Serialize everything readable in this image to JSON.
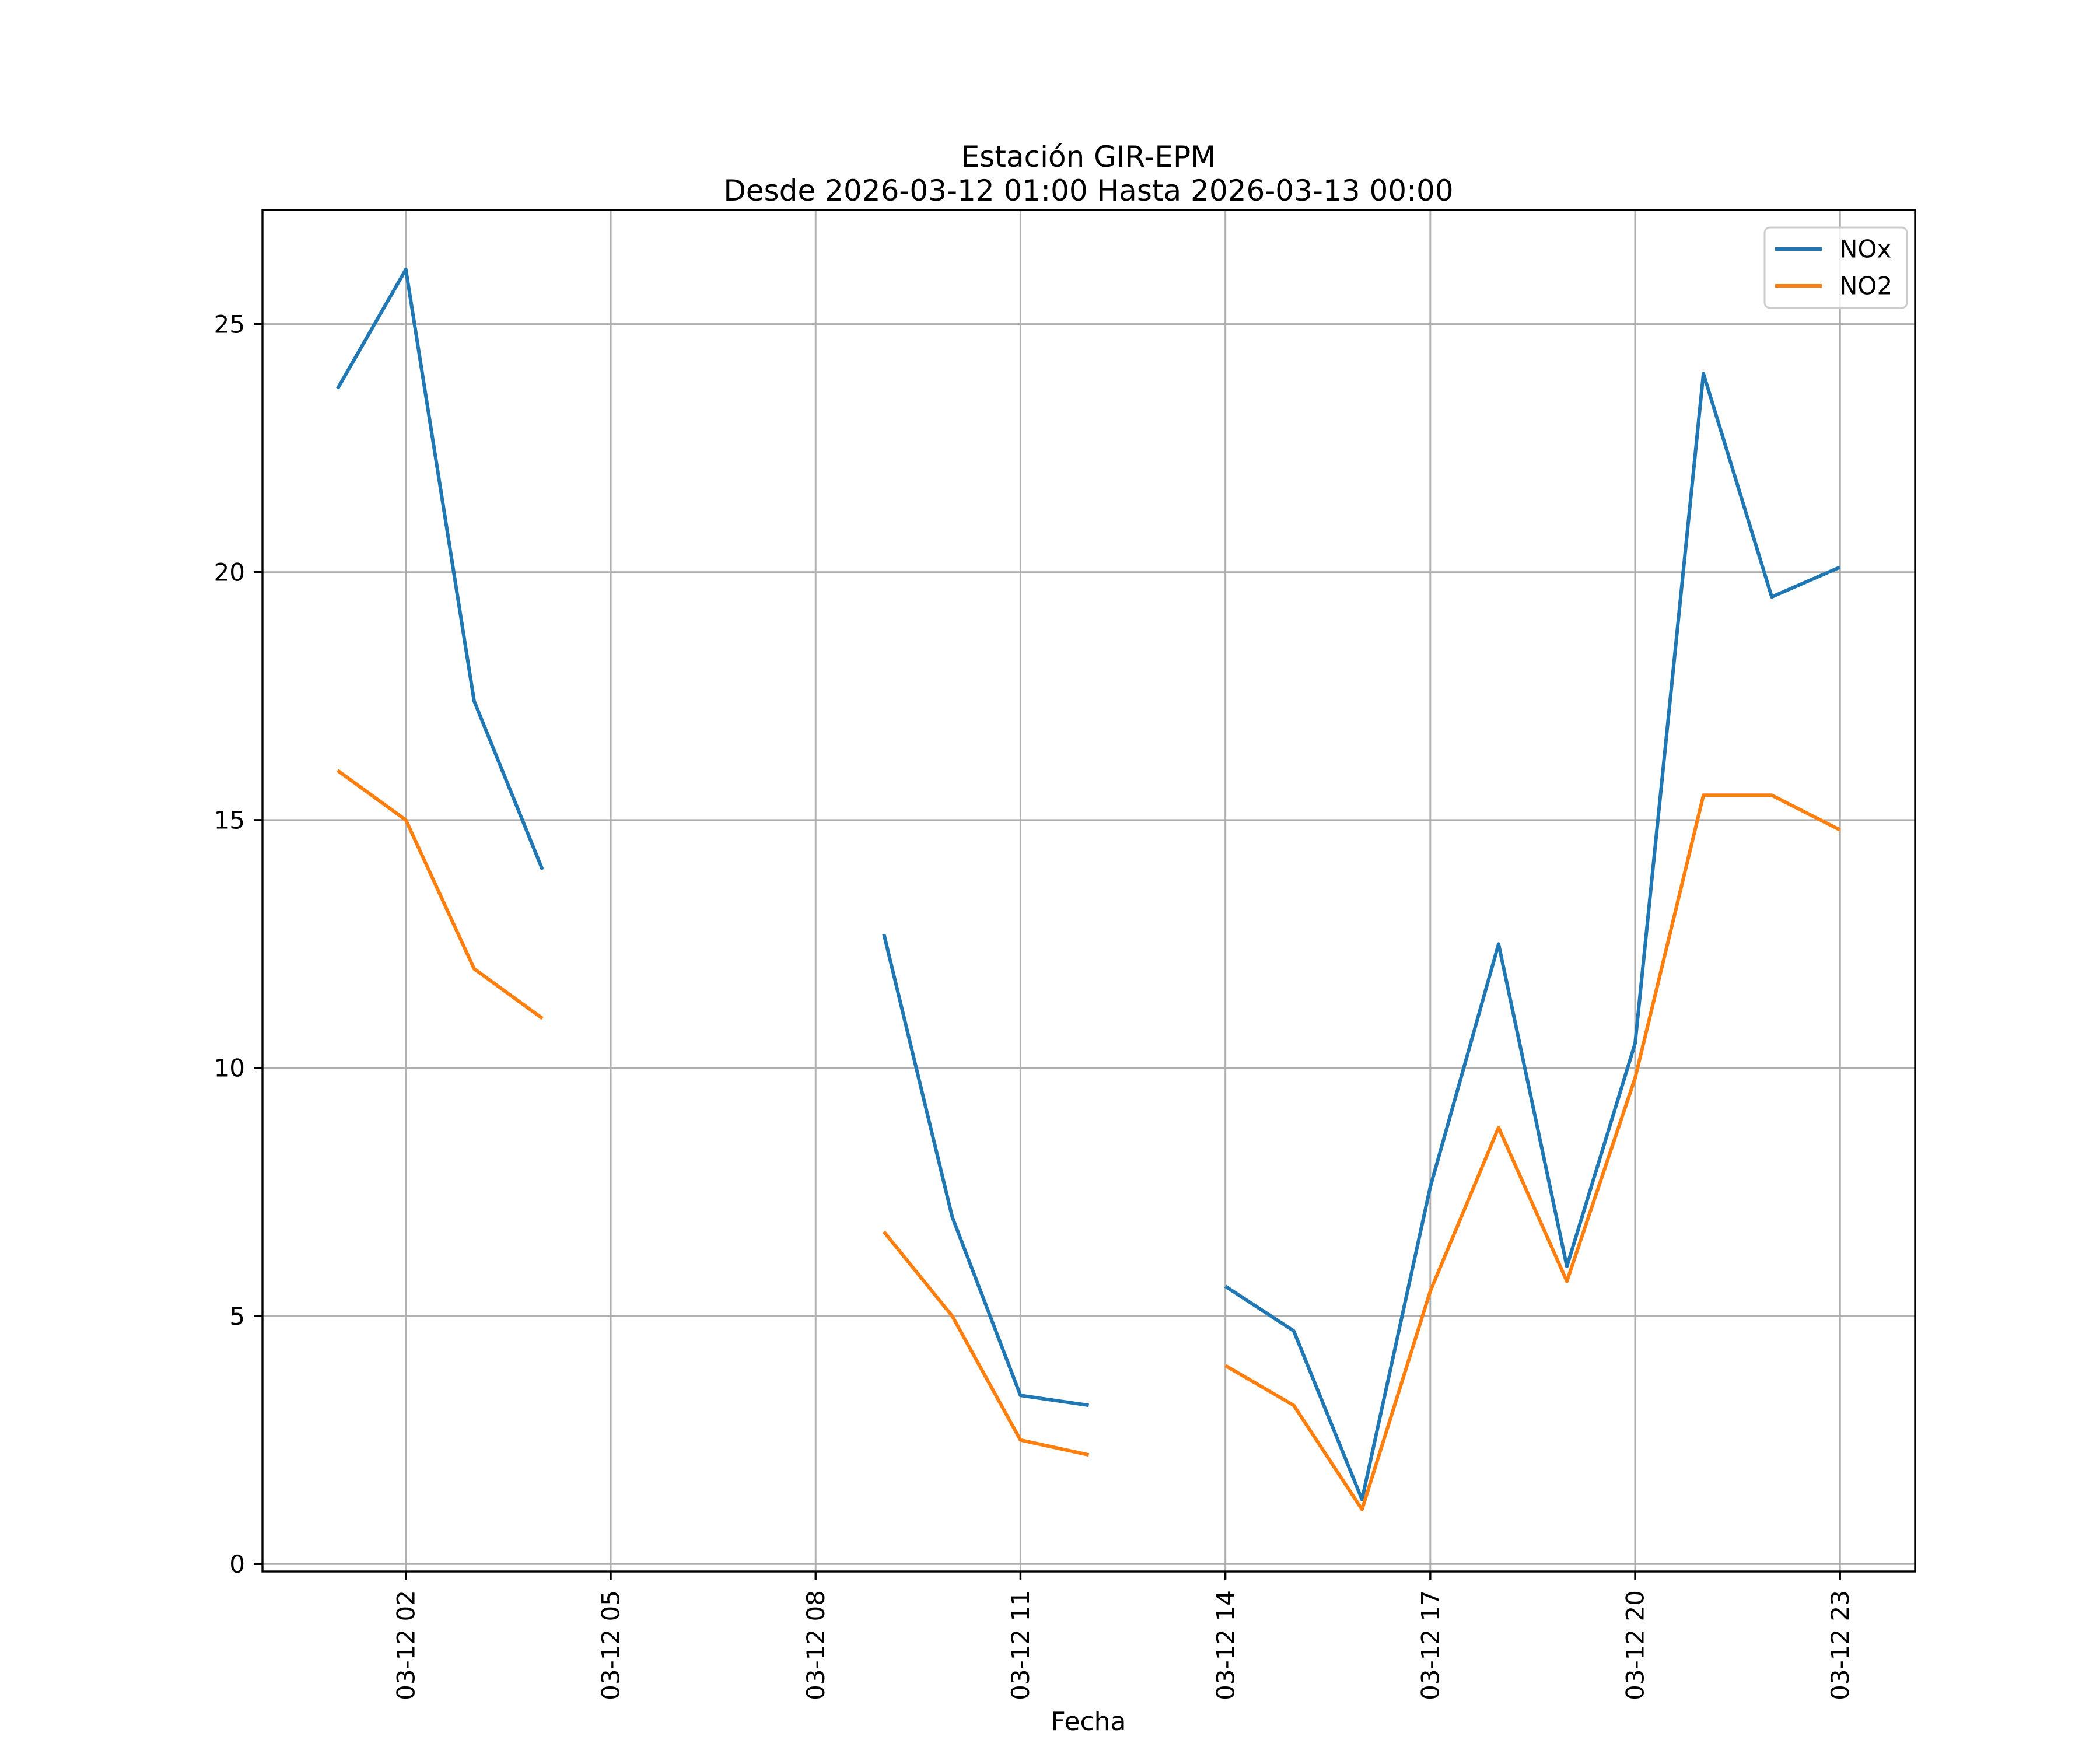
{
  "chart_data": {
    "type": "line",
    "title": "Estación GIR-EPM",
    "subtitle": "Desde 2026-03-12 01:00 Hasta 2026-03-13 00:00",
    "xlabel": "Fecha",
    "ylabel": "",
    "x": [
      1,
      2,
      3,
      4,
      5,
      6,
      7,
      8,
      9,
      10,
      11,
      12,
      13,
      14,
      15,
      16,
      17,
      18,
      19,
      20,
      21,
      22,
      23
    ],
    "x_tick_positions": [
      2,
      5,
      8,
      11,
      14,
      17,
      20,
      23
    ],
    "x_tick_labels": [
      "03-12 02",
      "03-12 05",
      "03-12 08",
      "03-12 11",
      "03-12 14",
      "03-12 17",
      "03-12 20",
      "03-12 23"
    ],
    "y_ticks": [
      0,
      5,
      10,
      15,
      20,
      25
    ],
    "xlim": [
      -0.1,
      24.1
    ],
    "ylim": [
      -0.15,
      27.3
    ],
    "grid": true,
    "legend_position": "upper right",
    "colors": {
      "grid": "#b0b0b0",
      "spine": "#000000",
      "background": "#ffffff",
      "legend_edge": "#cccccc"
    },
    "series": [
      {
        "name": "NOx",
        "color": "#1f77b4",
        "values": [
          23.7,
          26.1,
          17.4,
          14.0,
          null,
          null,
          null,
          null,
          12.7,
          7.0,
          3.4,
          3.2,
          null,
          5.6,
          4.7,
          1.3,
          7.6,
          12.5,
          6.0,
          10.5,
          24.0,
          19.5,
          20.1
        ]
      },
      {
        "name": "NO2",
        "color": "#ff7f0e",
        "values": [
          16.0,
          15.0,
          12.0,
          11.0,
          null,
          null,
          null,
          null,
          6.7,
          5.0,
          2.5,
          2.2,
          null,
          4.0,
          3.2,
          1.1,
          5.5,
          8.8,
          5.7,
          9.8,
          15.5,
          15.5,
          14.8
        ]
      }
    ]
  }
}
